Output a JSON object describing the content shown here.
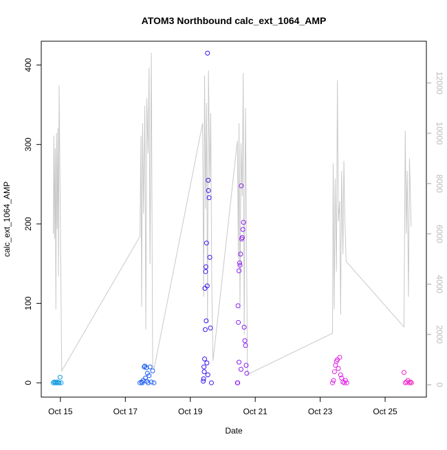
{
  "chart_data": {
    "type": "scatter",
    "title": "ATOM3 Northbound calc_ext_1064_AMP",
    "xlabel": "Date",
    "ylabel": "calc_ext_1064_AMP",
    "xlim": [
      14.41,
      26.27
    ],
    "xticks": [
      {
        "value": 15,
        "label": "Oct 15"
      },
      {
        "value": 17,
        "label": "Oct 17"
      },
      {
        "value": 19,
        "label": "Oct 19"
      },
      {
        "value": 21,
        "label": "Oct 21"
      },
      {
        "value": 23,
        "label": "Oct 23"
      },
      {
        "value": 25,
        "label": "Oct 25"
      }
    ],
    "ylim": [
      -18,
      430
    ],
    "yticks": [
      0,
      100,
      200,
      300,
      400
    ],
    "y2lim": [
      -490,
      13660
    ],
    "y2ticks": [
      0,
      2000,
      4000,
      6000,
      8000,
      10000,
      12000
    ],
    "series": [
      {
        "type": "line",
        "axis": "y2",
        "color": "#c8c8c8",
        "x": [
          14.78,
          14.8,
          14.82,
          14.84,
          14.86,
          14.88,
          14.9,
          14.92,
          14.94,
          14.96,
          15.04,
          17.45,
          17.48,
          17.5,
          17.53,
          17.56,
          17.6,
          17.63,
          17.66,
          17.7,
          17.73,
          17.76,
          17.8,
          17.84,
          17.88,
          19.38,
          19.41,
          19.44,
          19.47,
          19.5,
          19.53,
          19.56,
          19.6,
          19.63,
          19.66,
          19.7,
          20.45,
          20.48,
          20.5,
          20.53,
          20.56,
          20.6,
          20.63,
          20.66,
          20.7,
          20.73,
          20.76,
          23.38,
          23.4,
          23.43,
          23.46,
          23.5,
          23.53,
          23.56,
          23.6,
          23.63,
          23.66,
          23.7,
          23.73,
          23.76,
          23.8,
          25.58,
          25.62,
          25.65,
          25.68,
          25.72,
          25.75,
          25.8
        ],
        "values": [
          6000,
          9900,
          5800,
          9400,
          3000,
          10000,
          6200,
          10200,
          4300,
          11900,
          550,
          5900,
          9900,
          3100,
          10400,
          6800,
          11100,
          2200,
          11400,
          9200,
          12600,
          4800,
          13200,
          800,
          600,
          10400,
          3500,
          12300,
          7000,
          11200,
          2500,
          12500,
          8000,
          10800,
          4000,
          950,
          9700,
          5000,
          10400,
          3000,
          9600,
          7500,
          12400,
          2000,
          11000,
          6000,
          410,
          2050,
          8800,
          3000,
          8200,
          4500,
          12100,
          6500,
          7300,
          2800,
          8500,
          5200,
          8900,
          6600,
          4900,
          2300,
          10100,
          6000,
          8500,
          3500,
          9000,
          6300
        ]
      },
      {
        "color": "#0a9ade",
        "x": [
          14.78,
          14.81,
          14.84,
          14.87,
          14.9,
          14.93,
          14.96,
          14.99,
          15.02
        ],
        "values": [
          0,
          1,
          0,
          0,
          1,
          0,
          0,
          7,
          0
        ]
      },
      {
        "color": "#1a5cf0",
        "x": [
          17.45,
          17.5,
          17.55,
          17.58,
          17.6,
          17.62,
          17.65,
          17.68,
          17.7,
          17.73,
          17.76,
          17.8,
          17.84,
          17.88,
          17.52,
          17.66
        ],
        "values": [
          0,
          1,
          3,
          20,
          21,
          6,
          19,
          12,
          0,
          9,
          20,
          1,
          15,
          0,
          0,
          2
        ]
      },
      {
        "color": "#3416f2",
        "x": [
          19.4,
          19.42,
          19.44,
          19.45,
          19.47,
          19.48,
          19.5,
          19.52,
          19.53,
          19.55,
          19.56,
          19.58,
          19.6,
          19.62,
          19.65,
          19.46,
          19.49,
          19.51,
          19.43,
          19.41,
          19.54
        ],
        "values": [
          2,
          20,
          30,
          119,
          140,
          146,
          176,
          122,
          415,
          255,
          242,
          233,
          158,
          69,
          0,
          67,
          78,
          25,
          14,
          5,
          10
        ]
      },
      {
        "color": "#8a1cf0",
        "x": [
          20.45,
          20.47,
          20.48,
          20.5,
          20.52,
          20.53,
          20.55,
          20.57,
          20.58,
          20.6,
          20.62,
          20.64,
          20.66,
          20.68,
          20.7,
          20.72,
          20.74,
          20.5,
          20.56,
          20.46
        ],
        "values": [
          0,
          97,
          76,
          141,
          151,
          148,
          162,
          248,
          181,
          183,
          193,
          202,
          70,
          53,
          47,
          22,
          12,
          26,
          17,
          0
        ]
      },
      {
        "color": "#e020e8",
        "x": [
          23.38,
          23.41,
          23.44,
          23.47,
          23.5,
          23.53,
          23.56,
          23.6,
          23.63,
          23.66,
          23.7,
          23.74,
          23.78,
          23.82
        ],
        "values": [
          0,
          3,
          14,
          22,
          27,
          29,
          18,
          32,
          10,
          6,
          1,
          0,
          3,
          0
        ]
      },
      {
        "color": "#f020c8",
        "x": [
          25.58,
          25.62,
          25.66,
          25.7,
          25.74,
          25.78,
          25.81
        ],
        "values": [
          13,
          0,
          1,
          3,
          0,
          1,
          0
        ]
      }
    ]
  }
}
